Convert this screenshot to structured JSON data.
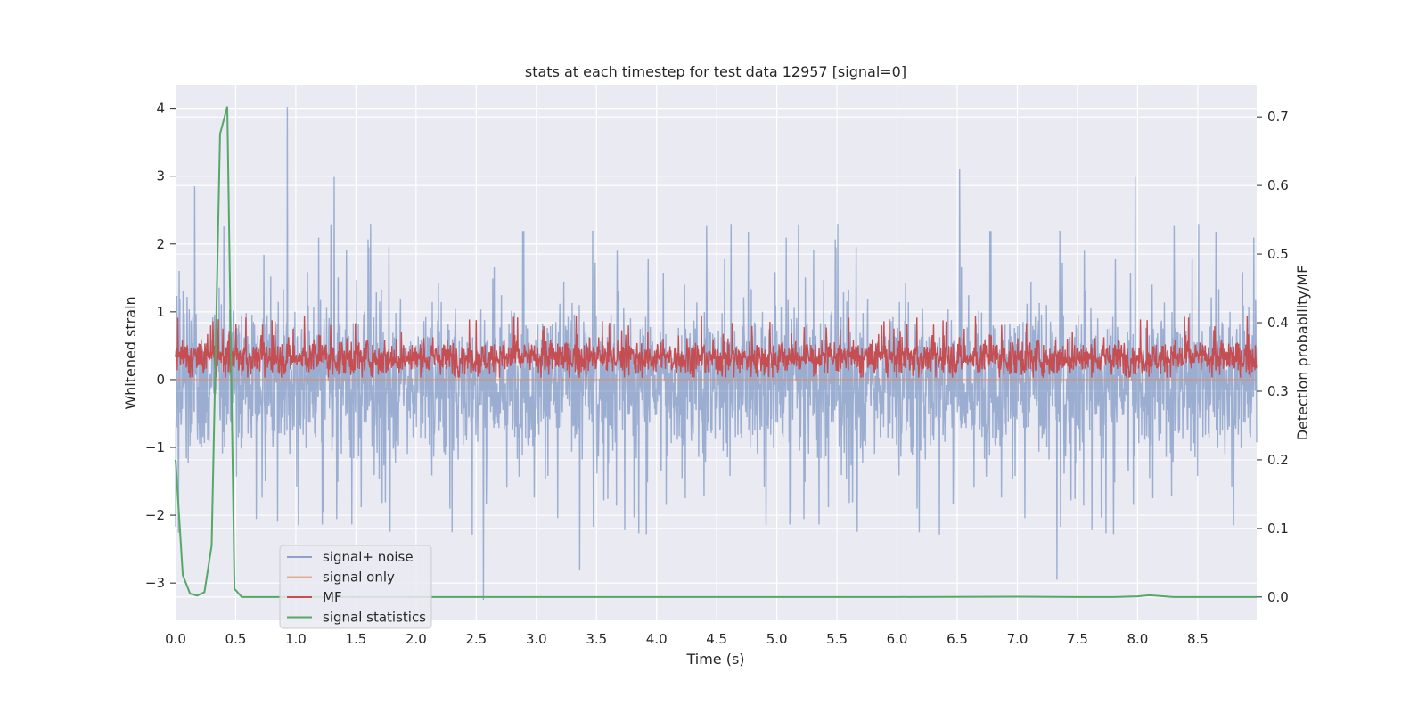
{
  "chart_data": {
    "type": "line",
    "title": "stats at each timestep for test data 12957 [signal=0]",
    "xlabel": "Time (s)",
    "ylabel_left": "Whitened strain",
    "ylabel_right": "Detection probability/MF",
    "xlim": [
      0.0,
      8.99
    ],
    "ylim_left": [
      -3.55,
      4.35
    ],
    "ylim_right": [
      -0.034,
      0.747
    ],
    "x_ticks": [
      "0.0",
      "0.5",
      "1.0",
      "1.5",
      "2.0",
      "2.5",
      "3.0",
      "3.5",
      "4.0",
      "4.5",
      "5.0",
      "5.5",
      "6.0",
      "6.5",
      "7.0",
      "7.5",
      "8.0",
      "8.5"
    ],
    "y_left_ticks": [
      "−3",
      "−2",
      "−1",
      "0",
      "1",
      "2",
      "3",
      "4"
    ],
    "y_right_ticks": [
      "0.0",
      "0.1",
      "0.2",
      "0.3",
      "0.4",
      "0.5",
      "0.6",
      "0.7"
    ],
    "grid": true,
    "legend_position": "lower-left",
    "series": [
      {
        "name": "signal+ noise",
        "color": "#4c72b0",
        "axis": "left",
        "description_values": "dense whitened-strain noise, roughly -3.2 to 4.0",
        "peaks": [
          [
            0.93,
            4.02
          ],
          [
            6.52,
            3.1
          ],
          [
            7.98,
            2.99
          ],
          [
            1.32,
            2.99
          ],
          [
            0.16,
            2.85
          ],
          [
            2.56,
            -3.25
          ],
          [
            7.33,
            -2.95
          ],
          [
            3.36,
            -2.8
          ]
        ]
      },
      {
        "name": "signal only",
        "color": "#dd8452",
        "axis": "left",
        "values_constant": 0.0
      },
      {
        "name": "MF",
        "color": "#c44e52",
        "axis": "left",
        "range": [
          0.03,
          0.97
        ]
      },
      {
        "name": "signal statistics",
        "color": "#55a868",
        "axis": "right",
        "x": [
          0.0,
          0.06,
          0.12,
          0.18,
          0.24,
          0.3,
          0.37,
          0.43,
          0.49,
          0.55,
          0.62,
          1.0,
          2.0,
          3.0,
          4.0,
          5.0,
          6.0,
          7.0,
          7.5,
          7.8,
          8.0,
          8.1,
          8.3,
          8.6,
          8.99
        ],
        "y": [
          0.2,
          0.032,
          0.005,
          0.002,
          0.007,
          0.075,
          0.675,
          0.715,
          0.012,
          0.0,
          0.0,
          0.0,
          0.0,
          0.0,
          0.0,
          0.0,
          0.0,
          0.0005,
          0.0,
          0.0,
          0.001,
          0.0025,
          0.0,
          0.0,
          0.0
        ]
      }
    ]
  }
}
